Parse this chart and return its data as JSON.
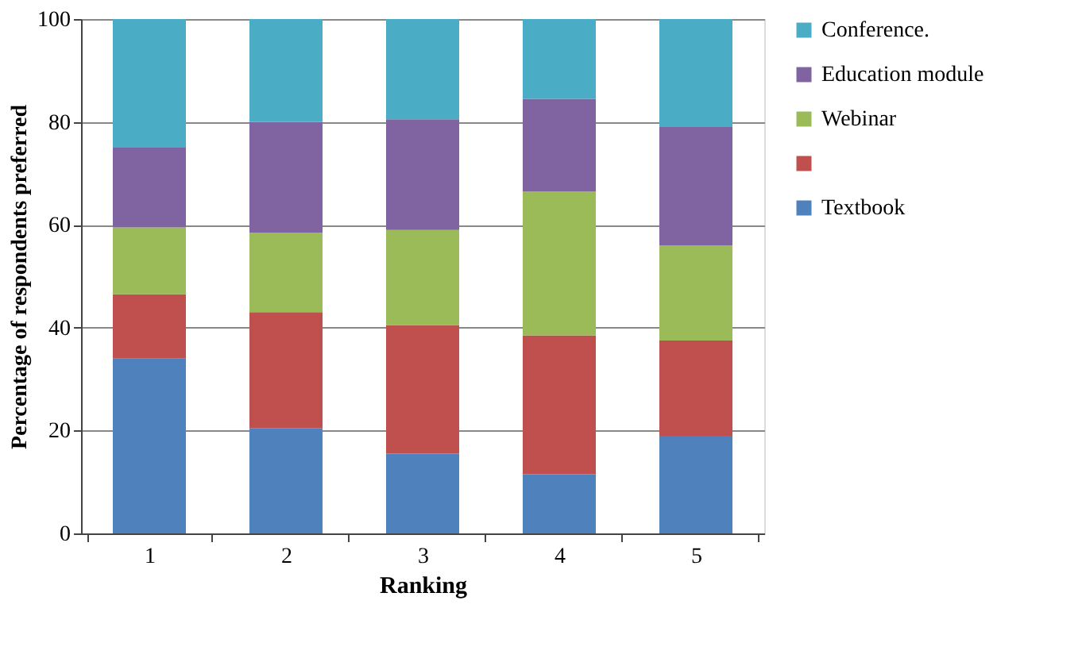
{
  "chart_data": {
    "type": "bar",
    "stacked": true,
    "xlabel": "Ranking",
    "ylabel": "Percentage of respondents preferred",
    "categories": [
      "1",
      "2",
      "3",
      "4",
      "5"
    ],
    "series": [
      {
        "name": "Textbook",
        "color": "#4f81bd",
        "values": [
          34,
          20.5,
          15.5,
          11.5,
          19
        ]
      },
      {
        "color": "#c0504d",
        "values": [
          12.5,
          22.5,
          25,
          27,
          18.5
        ]
      },
      {
        "name": "Webinar",
        "color": "#9bbb59",
        "values": [
          13,
          15.5,
          18.5,
          28,
          18.5
        ]
      },
      {
        "name": "Education module",
        "color": "#8064a2",
        "values": [
          15.5,
          21.5,
          21.5,
          18,
          23
        ]
      },
      {
        "name": "Conference.",
        "color": "#4bacc6",
        "values": [
          25,
          20,
          19.5,
          15.5,
          21
        ]
      }
    ],
    "ylim": [
      0,
      100
    ],
    "yticks": [
      0,
      20,
      40,
      60,
      80,
      100
    ],
    "grid": "y",
    "legend": "right"
  }
}
